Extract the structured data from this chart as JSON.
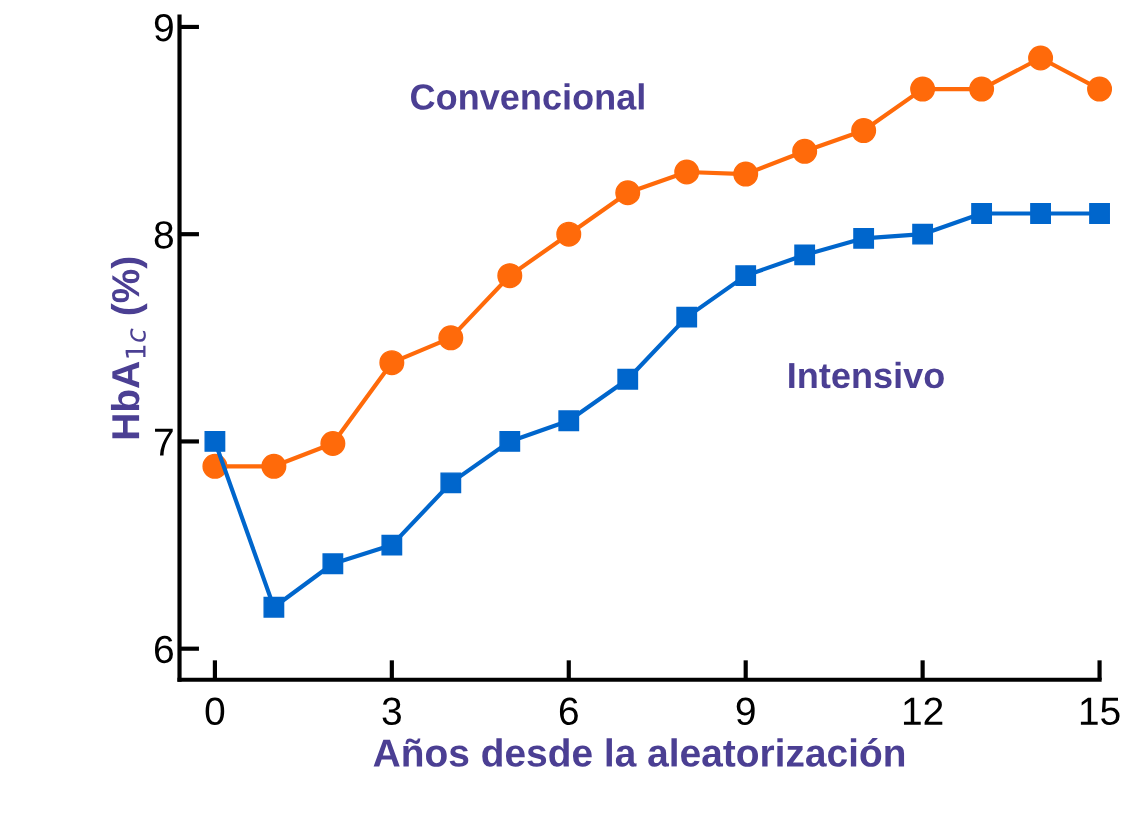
{
  "chart_data": {
    "type": "line",
    "xlabel": "Años desde la aleatorización",
    "ylabel": "HbA$_{1c}$ (%)",
    "x": [
      0,
      1,
      2,
      3,
      4,
      5,
      6,
      7,
      8,
      9,
      10,
      11,
      12,
      13,
      14,
      15
    ],
    "series": [
      {
        "name": "Convencional",
        "color": "#ff6a0a",
        "marker": "circle",
        "values": [
          6.88,
          6.88,
          6.99,
          7.38,
          7.5,
          7.8,
          8.0,
          8.2,
          8.3,
          8.29,
          8.4,
          8.5,
          8.7,
          8.7,
          8.85,
          8.7
        ]
      },
      {
        "name": "Intensivo",
        "color": "#0066cc",
        "marker": "square",
        "values": [
          7.0,
          6.2,
          6.41,
          6.5,
          6.8,
          7.0,
          7.1,
          7.3,
          7.6,
          7.8,
          7.9,
          7.98,
          8.0,
          8.1,
          8.1,
          8.1
        ]
      }
    ],
    "xlim": [
      -0.6,
      15
    ],
    "xticks": [
      0,
      3,
      6,
      9,
      12,
      15
    ],
    "ylim": [
      5.85,
      9.05
    ],
    "yticks": [
      6,
      7,
      8,
      9
    ],
    "grid": false,
    "legend": false,
    "line_style": "solid"
  }
}
